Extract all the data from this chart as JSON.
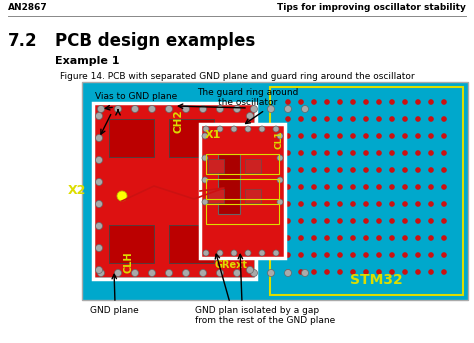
{
  "page_bg": "#ffffff",
  "header_left": "AN2867",
  "header_right": "Tips for improving oscillator stability",
  "section_number": "7.2",
  "section_title": "PCB design examples",
  "example_label": "Example 1",
  "figure_caption": "Figure 14. PCB with separated GND plane and guard ring around the oscillator",
  "pcb_bg": "#00a8cc",
  "red_color": "#dd1111",
  "dark_red": "#aa0000",
  "yellow_color": "#dddd00",
  "white_color": "#ffffff",
  "gray_color": "#aaaaaa",
  "dot_color": "#cc1111",
  "ann_vias": "Vias to GND plane",
  "ann_guard": "The guard ring around\nthe oscillator",
  "ann_gnd": "GND plane",
  "ann_isolated": "GND plan isolated by a gap\nfrom the rest of the GND plane"
}
